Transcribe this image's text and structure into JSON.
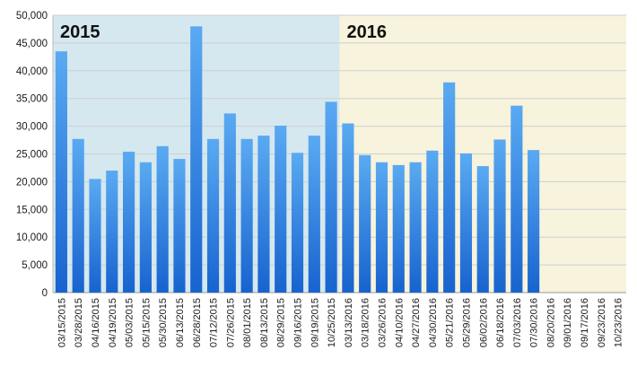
{
  "chart_data": {
    "type": "bar",
    "title": "",
    "xlabel": "",
    "ylabel": "",
    "ylim": [
      0,
      50000
    ],
    "yticks": [
      "0",
      "5,000",
      "10,000",
      "15,000",
      "20,000",
      "25,000",
      "30,000",
      "35,000",
      "40,000",
      "45,000",
      "50,000"
    ],
    "grid": true,
    "categories": [
      "03/15/2015",
      "03/28/2015",
      "04/16/2015",
      "04/19/2015",
      "05/03/2015",
      "05/15/2015",
      "05/30/2015",
      "06/13/2015",
      "06/28/2015",
      "07/12/2015",
      "07/26/2015",
      "08/01/2015",
      "08/13/2015",
      "08/29/2015",
      "09/16/2015",
      "09/19/2015",
      "10/25/2015",
      "03/13/2016",
      "03/18/2016",
      "03/26/2016",
      "04/10/2016",
      "04/27/2016",
      "04/30/2016",
      "05/21/2016",
      "05/29/2016",
      "06/02/2016",
      "06/18/2016",
      "07/03/2016",
      "07/30/2016",
      "08/20/2016",
      "09/01/2016",
      "09/17/2016",
      "09/23/2016",
      "10/23/2016"
    ],
    "values": [
      43500,
      27700,
      20500,
      22000,
      25400,
      23500,
      26400,
      24100,
      48000,
      27700,
      32300,
      27700,
      28300,
      30100,
      25200,
      28300,
      34400,
      30500,
      24800,
      23500,
      23000,
      23500,
      25600,
      37900,
      25100,
      22800,
      27600,
      33700,
      25700,
      null,
      null,
      null,
      null,
      null
    ],
    "periods": [
      {
        "label": "2015",
        "start": "03/15/2015",
        "end": "10/25/2015",
        "color": "#d5e8ef"
      },
      {
        "label": "2016",
        "start": "03/13/2016",
        "end": "10/23/2016",
        "color": "#f7f3dc"
      }
    ],
    "bar_color_top": "#5aaaf2",
    "bar_color_bottom": "#1763cf"
  }
}
